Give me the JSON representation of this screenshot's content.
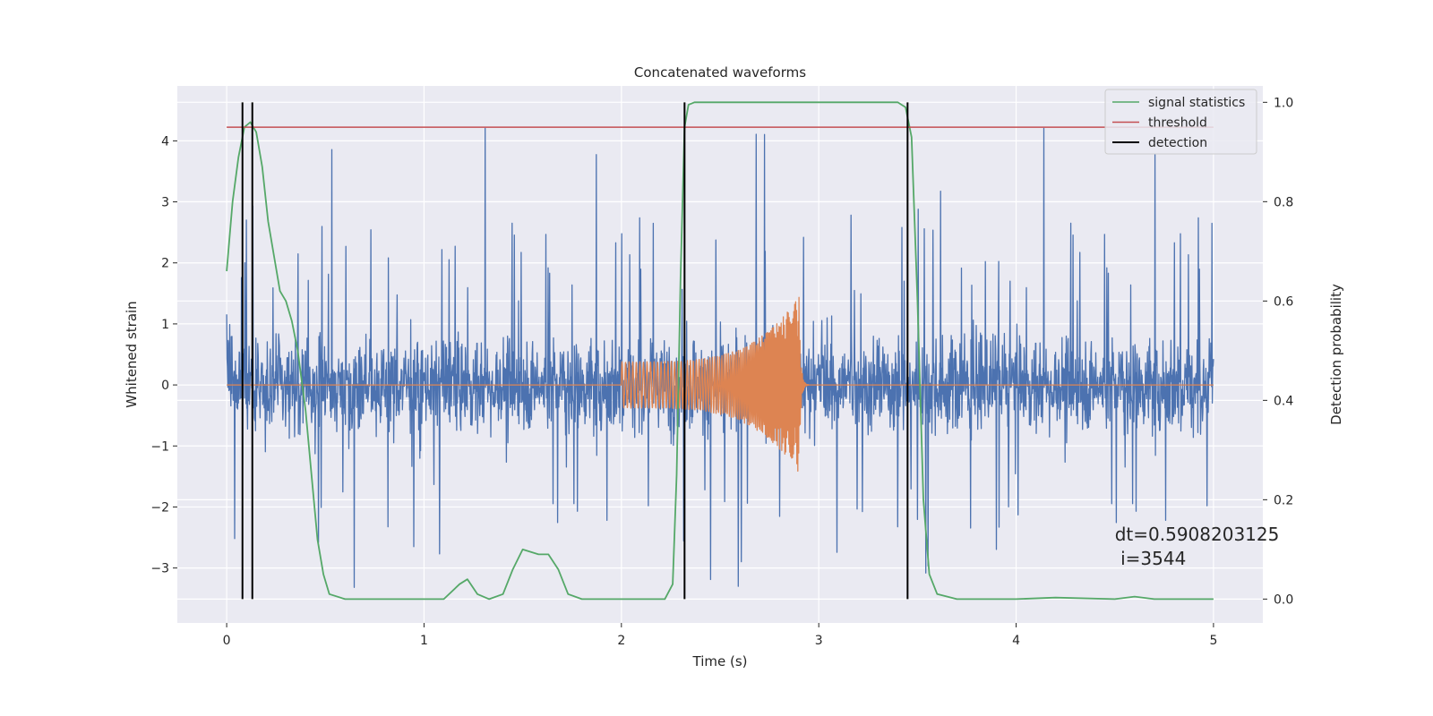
{
  "chart_data": {
    "type": "line",
    "title": "Concatenated waveforms",
    "xlabel": "Time (s)",
    "ylabel": "Whitened strain",
    "y2label": "Detection probability",
    "xlim": [
      -0.25,
      5.25
    ],
    "ylim": [
      -3.9,
      4.9
    ],
    "y2lim": [
      -0.048,
      1.033
    ],
    "xticks": [
      0,
      1,
      2,
      3,
      4,
      5
    ],
    "yticks": [
      -3,
      -2,
      -1,
      0,
      1,
      2,
      3,
      4
    ],
    "y2ticks": [
      0.0,
      0.2,
      0.4,
      0.6,
      0.8,
      1.0
    ],
    "y2ticklabels": [
      "0.0",
      "0.2",
      "0.4",
      "0.6",
      "0.8",
      "1.0"
    ],
    "grid": true,
    "legend_position": "top-right",
    "background_color": "#eaeaf2",
    "series": [
      {
        "name": "",
        "kind": "noise",
        "axis": "left",
        "color": "#4c72b0",
        "x_range": [
          0,
          5
        ],
        "spikes_max": 4.45,
        "spikes_min": -3.4
      },
      {
        "name": "",
        "kind": "chirp",
        "axis": "left",
        "color": "#dd8452",
        "x_range": [
          0,
          5
        ],
        "chirp_start": 2.0,
        "chirp_end": 2.9,
        "amp_start": 0.38,
        "amp_peak": 1.45
      },
      {
        "name": "signal statistics",
        "kind": "line",
        "axis": "right",
        "color": "#55a868",
        "x": [
          0,
          0.03,
          0.06,
          0.09,
          0.12,
          0.15,
          0.18,
          0.21,
          0.24,
          0.27,
          0.3,
          0.33,
          0.36,
          0.4,
          0.43,
          0.46,
          0.49,
          0.52,
          0.6,
          1.0,
          1.1,
          1.18,
          1.22,
          1.27,
          1.33,
          1.4,
          1.45,
          1.5,
          1.58,
          1.63,
          1.68,
          1.73,
          1.8,
          2.0,
          2.22,
          2.26,
          2.28,
          2.3,
          2.32,
          2.34,
          2.37,
          2.5,
          3.4,
          3.44,
          3.47,
          3.5,
          3.53,
          3.56,
          3.6,
          3.7,
          4.0,
          4.2,
          4.5,
          4.6,
          4.7,
          5.0
        ],
        "y": [
          0.66,
          0.8,
          0.89,
          0.95,
          0.96,
          0.94,
          0.87,
          0.76,
          0.69,
          0.62,
          0.6,
          0.56,
          0.5,
          0.38,
          0.25,
          0.12,
          0.05,
          0.01,
          0.0,
          0.0,
          0.0,
          0.03,
          0.04,
          0.01,
          0.0,
          0.01,
          0.06,
          0.1,
          0.09,
          0.09,
          0.06,
          0.01,
          0.0,
          0.0,
          0.0,
          0.03,
          0.25,
          0.65,
          0.95,
          0.995,
          1.0,
          1.0,
          1.0,
          0.99,
          0.93,
          0.6,
          0.2,
          0.05,
          0.01,
          0.0,
          0.0,
          0.003,
          0.0,
          0.005,
          0.0,
          0.0
        ]
      },
      {
        "name": "threshold",
        "kind": "hline",
        "axis": "right",
        "color": "#c44e52",
        "y": 0.95,
        "x_range": [
          0,
          5
        ]
      },
      {
        "name": "detection",
        "kind": "vlines",
        "axis": "right",
        "color": "#000000",
        "x": [
          0.08,
          0.13,
          2.32,
          3.45
        ],
        "y_range": [
          0.0,
          1.0
        ]
      }
    ],
    "annotations": [
      {
        "text": "dt=0.5908203125",
        "x": 4.5,
        "y": -2.55
      },
      {
        "text": " i=3544",
        "x": 4.5,
        "y": -2.95
      }
    ]
  }
}
